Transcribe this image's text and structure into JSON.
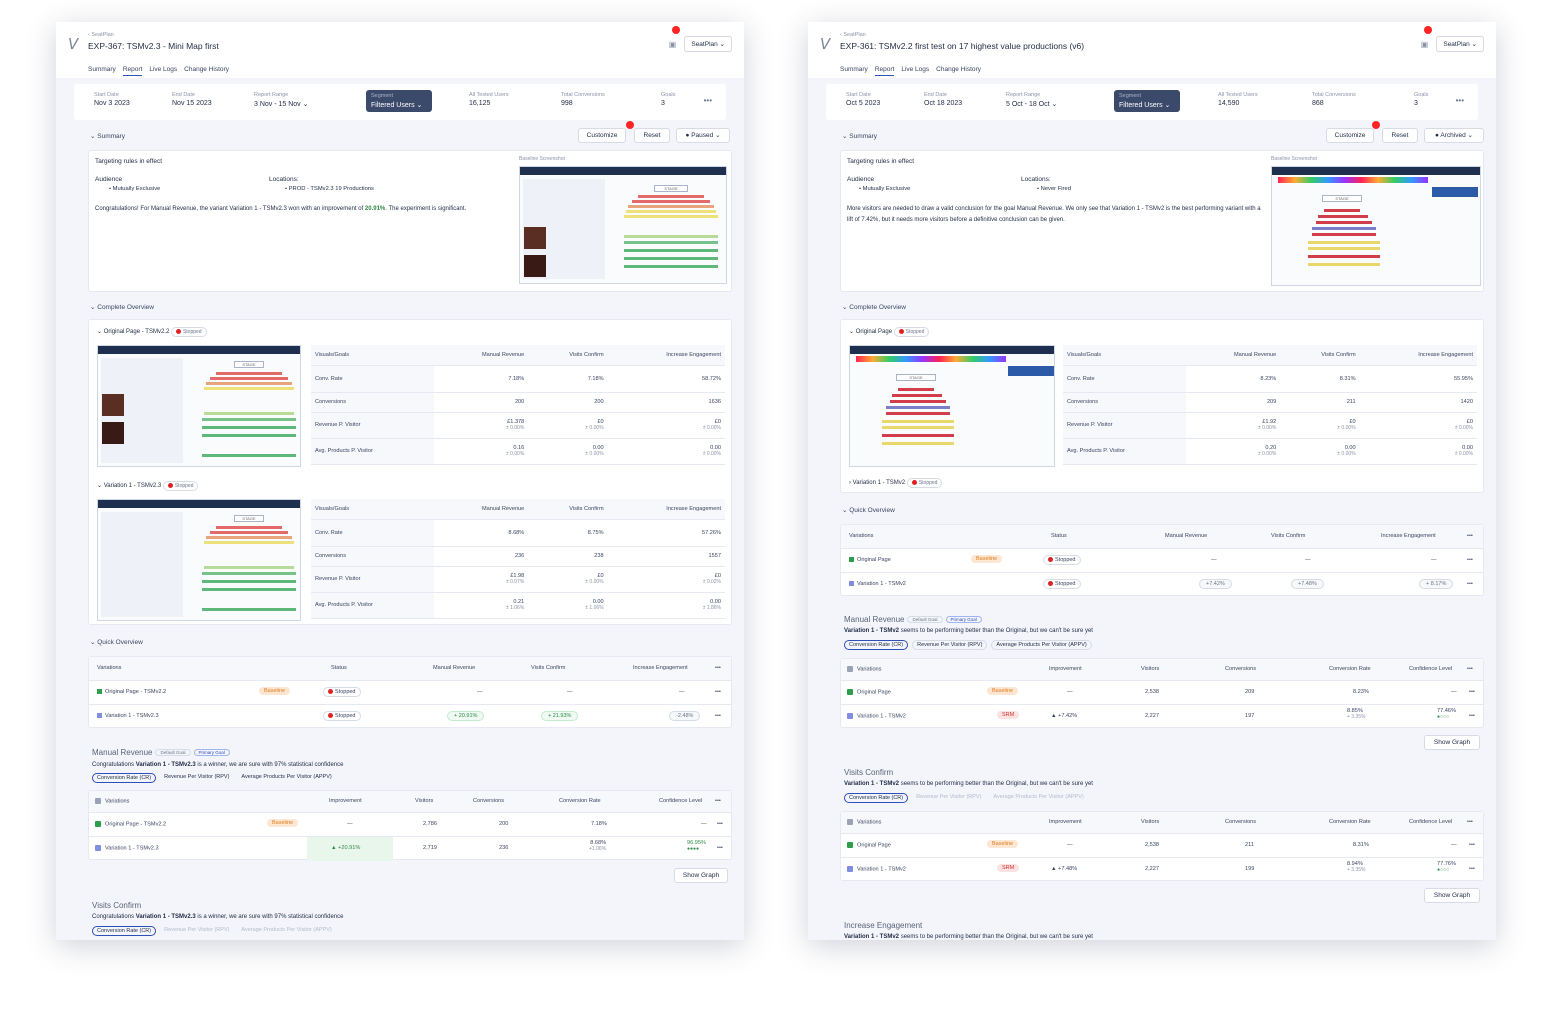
{
  "left": {
    "crumb": "‹ SeatPlan",
    "title": "EXP-367: TSMv2.3 - Mini Map first",
    "account": "SeatPlan ⌄",
    "tabs": [
      "Summary",
      "Report",
      "Live Logs",
      "Change History"
    ],
    "metrics": {
      "start_lbl": "Start Date",
      "start": "Nov 3 2023",
      "end_lbl": "End Date",
      "end": "Nov 15 2023",
      "range_lbl": "Report Range",
      "range": "3 Nov - 15 Nov ⌄",
      "seg_lbl": "Segment",
      "seg": "Filtered Users ⌄",
      "users_lbl": "All Tested Users",
      "users": "16,125",
      "conv_lbl": "Total Conversions",
      "conv": "998",
      "goals_lbl": "Goals",
      "goals": "3",
      "more": "•••"
    },
    "summary": {
      "head": "⌄ Summary",
      "customize": "Customize",
      "reset": "Reset",
      "status": "● Paused ⌄",
      "targeting": "Targeting rules in effect",
      "aud_lbl": "Audience",
      "aud_val": "• Mutually Exclusive",
      "loc_lbl": "Locations:",
      "loc_val": "• PROD - TSMv2.3 19 Productions",
      "text1": "Congratulations! For Manual Revenue, the variant Variation 1 - TSMv2.3 won with an improvement of ",
      "pct": "20.91%",
      "text2": ". The experiment is significant.",
      "baseline": "Baseline Screenshot"
    },
    "overview": {
      "head": "⌄ Complete Overview",
      "orig": "⌄ Original Page - TSMv2.2",
      "var": "⌄ Variation 1 - TSMv2.3",
      "stopped": "Stopped",
      "headers": [
        "Visuals/Goals",
        "Manual Revenue",
        "Visits Confirm",
        "Increase Engagement"
      ],
      "orig_rows": [
        [
          "Conv. Rate",
          "7.18%",
          "7.18%",
          "58.72%"
        ],
        [
          "Conversions",
          "200",
          "200",
          "1636"
        ],
        [
          "Revenue P. Visitor",
          "£1.378",
          "£0",
          "£0"
        ],
        [
          "Avg. Products P. Visitor",
          "0.16",
          "0.00",
          "0.00"
        ]
      ],
      "var_rows": [
        [
          "Conv. Rate",
          "8.68%",
          "8.75%",
          "57.26%"
        ],
        [
          "Conversions",
          "236",
          "238",
          "1557"
        ],
        [
          "Revenue P. Visitor",
          "£1.98",
          "£0",
          "£0"
        ],
        [
          "Avg. Products P. Visitor",
          "0.21",
          "0.00",
          "0.00"
        ]
      ],
      "subs": {
        "o1": "± 0.00%",
        "v1": "± 0.07%",
        "v2": "± 0.02%",
        "v3": "± 1.06%",
        "v4": "± 1.86%"
      }
    },
    "quick": {
      "head": "⌄ Quick Overview",
      "cols": [
        "Variations",
        "Status",
        "Manual Revenue",
        "Visits Confirm",
        "Increase Engagement",
        "•••"
      ],
      "r1": {
        "name": "Original Page - TSMv2.2",
        "badge": "Baseline",
        "status": "Stopped",
        "mr": "—",
        "vc": "—",
        "ie": "—"
      },
      "r2": {
        "name": "Variation 1 - TSMv2.3",
        "status": "Stopped",
        "mr": "+ 20.91%",
        "vc": "+ 21.93%",
        "ie": "-2.48%"
      }
    },
    "goal1": {
      "title": "Manual Revenue",
      "tag1": "Default Goal",
      "tag2": "Primary Goal",
      "msg_a": "Congratulations ",
      "msg_b": "Variation 1 - TSMv2.3",
      "msg_c": " is a winner, we are sure with 97% statistical confidence",
      "metric_tabs": [
        "Conversion Rate (CR)",
        "Revenue Per Visitor (RPV)",
        "Average Products Per Visitor (APPV)"
      ],
      "cols": [
        "Variations",
        "Improvement",
        "Visitors",
        "Conversions",
        "Conversion Rate",
        "Confidence Level"
      ],
      "r1": {
        "name": "Original Page - TSMv2.2",
        "badge": "Baseline",
        "imp": "—",
        "visitors": "2,786",
        "conv": "200",
        "cr": "7.18%",
        "conf": "—"
      },
      "r2": {
        "name": "Variation 1 - TSMv2.3",
        "imp": "▲ +20.91%",
        "visitors": "2,719",
        "conv": "236",
        "cr": "8.68%",
        "cr_sub": "+1.06%",
        "conf": "96.95%"
      },
      "show_graph": "Show Graph"
    },
    "goal2": {
      "title": "Visits Confirm",
      "msg_a": "Congratulations ",
      "msg_b": "Variation 1 - TSMv2.3",
      "msg_c": " is a winner, we are sure with 97% statistical confidence",
      "metric_tabs": [
        "Conversion Rate (CR)",
        "Revenue Per Visitor (RPV)",
        "Average Products Per Visitor (APPV)"
      ]
    }
  },
  "right": {
    "crumb": "‹ SeatPlan",
    "title": "EXP-361: TSMv2.2 first test on 17 highest value productions (v6)",
    "account": "SeatPlan ⌄",
    "tabs": [
      "Summary",
      "Report",
      "Live Logs",
      "Change History"
    ],
    "metrics": {
      "start_lbl": "Start Date",
      "start": "Oct 5 2023",
      "end_lbl": "End Date",
      "end": "Oct 18 2023",
      "range_lbl": "Report Range",
      "range": "5 Oct - 18 Oct ⌄",
      "seg_lbl": "Segment",
      "seg": "Filtered Users ⌄",
      "users_lbl": "All Tested Users",
      "users": "14,590",
      "conv_lbl": "Total Conversions",
      "conv": "868",
      "goals_lbl": "Goals",
      "goals": "3",
      "more": "•••"
    },
    "summary": {
      "head": "⌄ Summary",
      "customize": "Customize",
      "reset": "Reset",
      "status": "● Archived ⌄",
      "targeting": "Targeting rules in effect",
      "aud_lbl": "Audience",
      "aud_val": "• Mutually Exclusive",
      "loc_lbl": "Locations:",
      "loc_val": "• Never Fired",
      "text": "More visitors are needed to draw a valid conclusion for the goal Manual Revenue. We only see that Variation 1 - TSMv2 is the best performing variant with a lift of 7.42%, but it needs more visitors before a definitive conclusion can be given.",
      "baseline": "Baseline Screenshot"
    },
    "overview": {
      "head": "⌄ Complete Overview",
      "orig": "⌄ Original Page",
      "var": "› Variation 1 - TSMv2",
      "stopped": "Stopped",
      "headers": [
        "Visuals/Goals",
        "Manual Revenue",
        "Visits Confirm",
        "Increase Engagement"
      ],
      "orig_rows": [
        [
          "Conv. Rate",
          "8.23%",
          "8.31%",
          "55.95%"
        ],
        [
          "Conversions",
          "209",
          "211",
          "1420"
        ],
        [
          "Revenue P. Visitor",
          "£1.92",
          "£0",
          "£0"
        ],
        [
          "Avg. Products P. Visitor",
          "0.20",
          "0.00",
          "0.00"
        ]
      ],
      "subs": {
        "o1": "± 0.00%"
      }
    },
    "quick": {
      "head": "⌄ Quick Overview",
      "cols": [
        "Variations",
        "Status",
        "Manual Revenue",
        "Visits Confirm",
        "Increase Engagement",
        "•••"
      ],
      "r1": {
        "name": "Original Page",
        "badge": "Baseline",
        "status": "Stopped",
        "mr": "—",
        "vc": "—",
        "ie": "—"
      },
      "r2": {
        "name": "Variation 1 - TSMv2",
        "status": "Stopped",
        "mr": "+7.42%",
        "vc": "+7.48%",
        "ie": "+ 8.17%"
      }
    },
    "goal1": {
      "title": "Manual Revenue",
      "tag1": "Default Goal",
      "tag2": "Primary Goal",
      "msg_b": "Variation 1 - TSMv2",
      "msg_c": " seems to be performing better than the Original, but we can't be sure yet",
      "metric_tabs": [
        "Conversion Rate (CR)",
        "Revenue Per Visitor (RPV)",
        "Average Products Per Visitor (APPV)"
      ],
      "cols": [
        "Variations",
        "Improvement",
        "Visitors",
        "Conversions",
        "Conversion Rate",
        "Confidence Level"
      ],
      "r1": {
        "name": "Original Page",
        "badge": "Baseline",
        "imp": "—",
        "visitors": "2,538",
        "conv": "209",
        "cr": "8.23%",
        "conf": "—"
      },
      "r2": {
        "name": "Variation 1 - TSMv2",
        "badge": "SRM",
        "imp": "▲ +7.42%",
        "visitors": "2,227",
        "conv": "197",
        "cr": "8.85%",
        "cr_sub": "+ 3.35%",
        "conf": "77.46%"
      },
      "show_graph": "Show Graph"
    },
    "goal2": {
      "title": "Visits Confirm",
      "msg_b": "Variation 1 - TSMv2",
      "msg_c": " seems to be performing better than the Original, but we can't be sure yet",
      "metric_tabs": [
        "Conversion Rate (CR)",
        "Revenue Per Visitor (RPV)",
        "Average Products Per Visitor (APPV)"
      ],
      "cols": [
        "Variations",
        "Improvement",
        "Visitors",
        "Conversions",
        "Conversion Rate",
        "Confidence Level"
      ],
      "r1": {
        "name": "Original Page",
        "badge": "Baseline",
        "imp": "—",
        "visitors": "2,538",
        "conv": "211",
        "cr": "8.31%",
        "conf": "—"
      },
      "r2": {
        "name": "Variation 1 - TSMv2",
        "badge": "SRM",
        "imp": "▲ +7.48%",
        "visitors": "2,227",
        "conv": "199",
        "cr": "8.94%",
        "cr_sub": "+ 3.35%",
        "conf": "77.76%"
      },
      "show_graph": "Show Graph"
    },
    "goal3": {
      "title": "Increase Engagement",
      "msg_b": "Variation 1 - TSMv2",
      "msg_c": " seems to be performing better than the Original, but we can't be sure yet"
    }
  }
}
